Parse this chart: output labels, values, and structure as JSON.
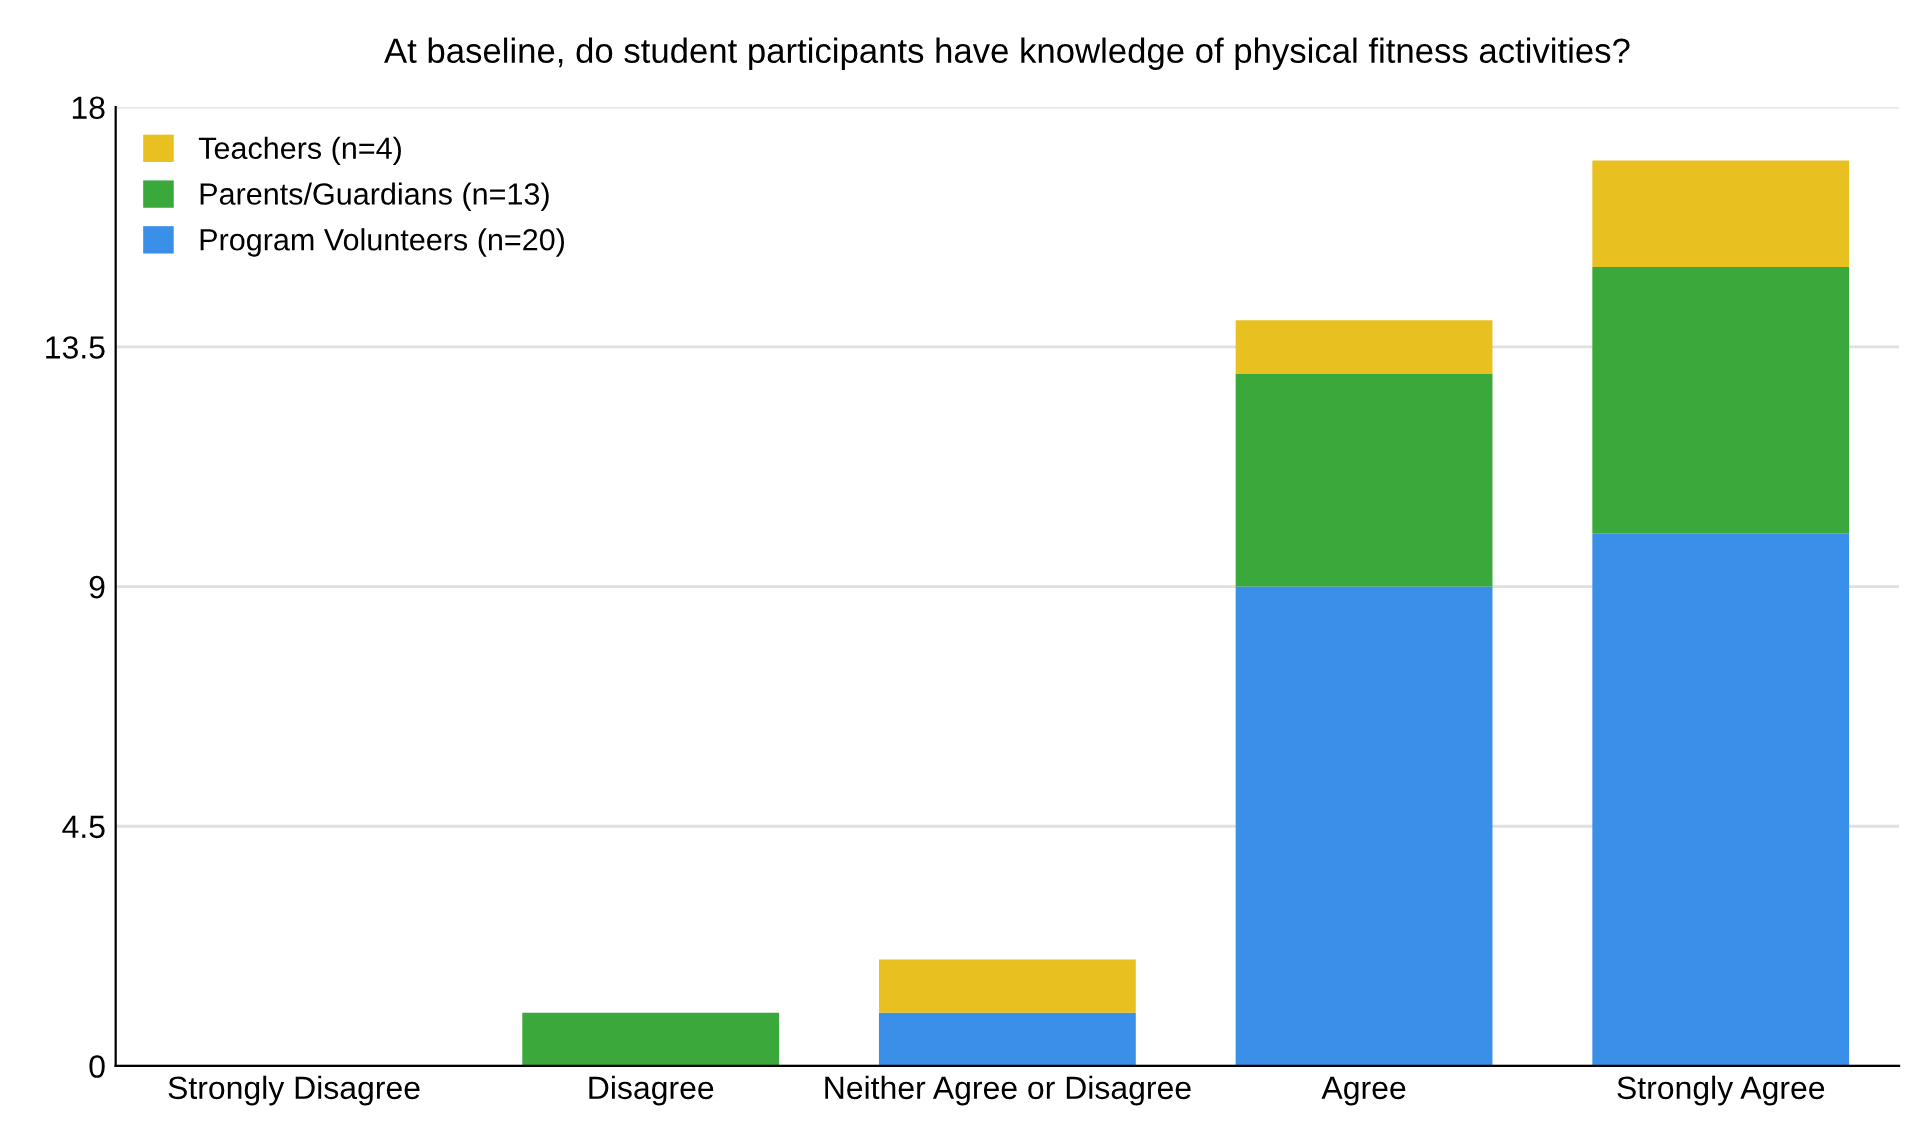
{
  "chart_data": {
    "type": "bar",
    "title": "At baseline, do student participants have knowledge of physical fitness activities?",
    "categories": [
      "Strongly Disagree",
      "Disagree",
      "Neither Agree or Disagree",
      "Agree",
      "Strongly Agree"
    ],
    "stacked": true,
    "series": [
      {
        "name": "Program Volunteers (n=20)",
        "color": "#3a8fe8",
        "values": [
          0,
          0,
          1,
          9,
          10
        ]
      },
      {
        "name": "Parents/Guardians (n=13)",
        "color": "#3aa83a",
        "values": [
          0,
          1,
          0,
          4,
          5
        ]
      },
      {
        "name": "Teachers (n=4)",
        "color": "#e8c020",
        "values": [
          0,
          0,
          1,
          1,
          2
        ]
      }
    ],
    "ylim": [
      0,
      18
    ],
    "yticks": [
      0,
      4.5,
      9,
      13.5,
      18
    ],
    "grid": "y",
    "legend": "top left"
  }
}
